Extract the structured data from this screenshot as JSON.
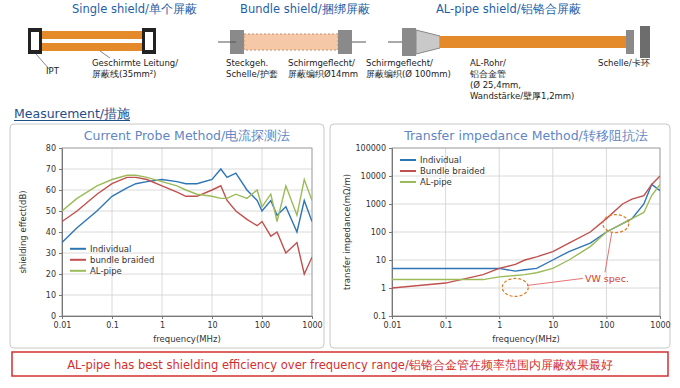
{
  "header": {
    "panels": [
      {
        "title": "Single shield/单个屏蔽",
        "labels": [
          [
            "IPT"
          ],
          [
            "Geschirmte Leitung/",
            "屏蔽线(35mm²)"
          ]
        ]
      },
      {
        "title": "Bundle shield/捆绑屏蔽",
        "labels": [
          [
            "Steckgeh.",
            "Schelle/护套"
          ],
          [
            "Schirmgeflecht/",
            "屏蔽编织Ø14mm"
          ]
        ]
      },
      {
        "title": "AL-pipe shield/铝铬合屏蔽",
        "labels": [
          [
            "Schirmgeflecht/",
            "屏蔽编织(Ø 100mm)"
          ],
          [
            "AL-Rohr/",
            "铝合金管",
            "(Ø 25,4mm,",
            "Wandstärke/壁厚1,2mm)"
          ],
          [
            "Schelle/卡环"
          ]
        ]
      }
    ]
  },
  "section_title": "Measurement/措施",
  "conclusion": "AL-pipe has best shielding efficiency over frequency range/铝铬合金管在频率范围内屏蔽效果最好",
  "chart_data": [
    {
      "type": "line",
      "title": "Current Probe Method/电流探测法",
      "x_label": "frequency(MHz)",
      "y_label": "shielding effect(dB)",
      "x": [
        0.01,
        0.02,
        0.05,
        0.1,
        0.2,
        0.3,
        0.5,
        1,
        2,
        3,
        5,
        10,
        15,
        20,
        30,
        50,
        80,
        100,
        150,
        200,
        300,
        500,
        700,
        1000
      ],
      "series": [
        {
          "name": "Individual",
          "color": "#2e75b6",
          "values": [
            35,
            42,
            50,
            57,
            61,
            63,
            64,
            65,
            64,
            63,
            63,
            65,
            70,
            66,
            68,
            60,
            55,
            50,
            55,
            48,
            52,
            40,
            55,
            45
          ]
        },
        {
          "name": "bundle braided",
          "color": "#c0504d",
          "values": [
            45,
            50,
            58,
            63,
            66,
            66,
            65,
            62,
            59,
            57,
            57,
            60,
            62,
            55,
            50,
            46,
            43,
            45,
            38,
            40,
            30,
            35,
            20,
            28
          ]
        },
        {
          "name": "AL-pipe",
          "color": "#9bbb59",
          "values": [
            50,
            56,
            62,
            65,
            67,
            67,
            66,
            64,
            62,
            60,
            58,
            57,
            56,
            56,
            58,
            56,
            60,
            52,
            58,
            45,
            62,
            48,
            65,
            55
          ]
        }
      ],
      "log": "x",
      "grid": true,
      "legend": "left",
      "xlim": [
        0.01,
        1000
      ],
      "xticks": [
        0.01,
        0.1,
        1,
        10,
        100,
        1000
      ],
      "ylim": [
        0,
        80
      ],
      "yticks": [
        0,
        10,
        20,
        30,
        40,
        50,
        60,
        70,
        80
      ]
    },
    {
      "type": "line",
      "title": "Transfer impedance Method/转移阻抗法",
      "x_label": "frequency(MHz)",
      "y_label": "transfer impedance(mΩ/m)",
      "annotation": "VW spec.",
      "x": [
        0.01,
        0.1,
        0.5,
        1,
        2,
        3,
        5,
        10,
        20,
        50,
        100,
        200,
        300,
        500,
        700,
        1000
      ],
      "series": [
        {
          "name": "Individual",
          "color": "#2e75b6",
          "values": [
            5,
            5,
            5,
            5,
            4,
            4.5,
            5,
            10,
            20,
            40,
            100,
            200,
            300,
            1000,
            5000,
            3000
          ]
        },
        {
          "name": "Bundle braided",
          "color": "#c0504d",
          "values": [
            1,
            1.5,
            3,
            5,
            7,
            10,
            13,
            20,
            40,
            100,
            300,
            1000,
            1500,
            2000,
            5000,
            10000
          ]
        },
        {
          "name": "AL-pipe",
          "color": "#9bbb59",
          "values": [
            2,
            2,
            2,
            2.5,
            2.8,
            3,
            3.5,
            5,
            10,
            30,
            100,
            200,
            300,
            500,
            2000,
            5000
          ]
        }
      ],
      "log": true,
      "grid": true,
      "legend": "upper left",
      "xlim": [
        0.01,
        1000
      ],
      "xticks": [
        0.01,
        0.1,
        1,
        10,
        100,
        1000
      ],
      "ylim": [
        0.1,
        100000
      ],
      "yticks": [
        0.1,
        1,
        10,
        100,
        1000,
        10000,
        100000
      ]
    }
  ]
}
